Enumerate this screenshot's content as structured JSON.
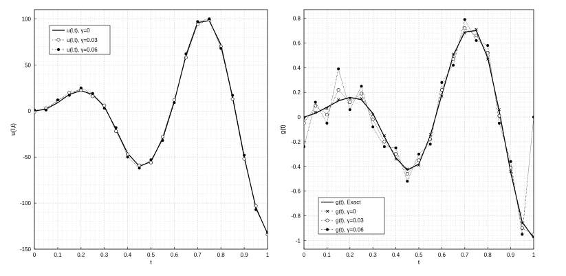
{
  "chart_data": [
    {
      "type": "line",
      "xlabel": "t",
      "ylabel": "u(l,t)",
      "xlim": [
        0,
        1
      ],
      "ylim": [
        -150,
        110
      ],
      "xticks": [
        "0",
        "0.1",
        "0.2",
        "0.3",
        "0.4",
        "0.5",
        "0.6",
        "0.7",
        "0.8",
        "0.9",
        "1"
      ],
      "yticks": [
        "100",
        "50",
        "0",
        "-50",
        "-100",
        "-150"
      ],
      "grid": true,
      "legend_position": "top-left",
      "x": [
        0,
        0.05,
        0.1,
        0.15,
        0.2,
        0.25,
        0.3,
        0.35,
        0.4,
        0.45,
        0.5,
        0.55,
        0.6,
        0.65,
        0.7,
        0.75,
        0.8,
        0.85,
        0.9,
        0.95,
        1.0
      ],
      "series": [
        {
          "name": "u(l,t), γ=0",
          "style": "line",
          "color": "#000000",
          "values": [
            0,
            2,
            9,
            18,
            22,
            18,
            5,
            -20,
            -46,
            -60,
            -55,
            -30,
            10,
            60,
            96,
            98,
            72,
            15,
            -50,
            -105,
            -133
          ]
        },
        {
          "name": "u(l,t), γ=0.03",
          "style": "open-circle",
          "color": "#000000",
          "values": [
            -1,
            3,
            11,
            20,
            23,
            16,
            6,
            -22,
            -47,
            -59,
            -56,
            -28,
            12,
            58,
            94,
            99,
            70,
            13,
            -52,
            -103,
            -134
          ]
        },
        {
          "name": "u(l,t), γ=0.06",
          "style": "filled-dot",
          "color": "#000000",
          "values": [
            1,
            1,
            12,
            17,
            25,
            19,
            3,
            -18,
            -50,
            -62,
            -53,
            -32,
            9,
            62,
            97,
            100,
            68,
            17,
            -48,
            -107,
            -132
          ]
        }
      ]
    },
    {
      "type": "line",
      "xlabel": "t",
      "ylabel": "g(t)",
      "xlim": [
        0,
        1
      ],
      "ylim": [
        -1.07,
        0.87
      ],
      "xticks": [
        "0",
        "0.1",
        "0.2",
        "0.3",
        "0.4",
        "0.5",
        "0.6",
        "0.7",
        "0.8",
        "0.9",
        "1"
      ],
      "yticks": [
        "0.8",
        "0.6",
        "0.4",
        "0.2",
        "0",
        "-0.2",
        "-0.4",
        "-0.6",
        "-0.8",
        "-1"
      ],
      "grid": true,
      "legend_position": "bottom-left",
      "x": [
        0,
        0.05,
        0.1,
        0.15,
        0.2,
        0.25,
        0.3,
        0.35,
        0.4,
        0.45,
        0.5,
        0.55,
        0.6,
        0.65,
        0.7,
        0.75,
        0.8,
        0.85,
        0.9,
        0.95,
        1.0
      ],
      "series": [
        {
          "name": "g(t), Exact",
          "style": "line",
          "color": "#000000",
          "values": [
            0,
            0.03,
            0.08,
            0.13,
            0.16,
            0.14,
            0.03,
            -0.16,
            -0.33,
            -0.43,
            -0.38,
            -0.15,
            0.18,
            0.5,
            0.69,
            0.7,
            0.48,
            0.05,
            -0.45,
            -0.85,
            -0.98
          ]
        },
        {
          "name": "g(t), γ=0",
          "style": "cross",
          "color": "#000000",
          "values": [
            -0.01,
            0.04,
            0.07,
            0.14,
            0.15,
            0.15,
            0.02,
            -0.15,
            -0.34,
            -0.42,
            -0.39,
            -0.14,
            0.17,
            0.51,
            0.68,
            0.71,
            0.47,
            0.06,
            -0.44,
            -0.86,
            -0.97
          ]
        },
        {
          "name": "g(t), γ=0.03",
          "style": "open-circle",
          "color": "#000000",
          "values": [
            -0.05,
            0.09,
            0.02,
            0.22,
            0.12,
            0.19,
            -0.02,
            -0.2,
            -0.3,
            -0.46,
            -0.35,
            -0.18,
            0.22,
            0.47,
            0.72,
            0.66,
            0.52,
            0.01,
            -0.41,
            -0.9,
            -0.95
          ]
        },
        {
          "name": "g(t), γ=0.06",
          "style": "filled-dot",
          "color": "#000000",
          "values": [
            -0.24,
            0.12,
            -0.05,
            0.39,
            0.06,
            0.25,
            -0.08,
            -0.24,
            -0.25,
            -0.52,
            -0.3,
            -0.22,
            0.28,
            0.42,
            0.79,
            0.62,
            0.58,
            -0.05,
            -0.36,
            -0.95,
            0.0
          ]
        }
      ]
    }
  ]
}
